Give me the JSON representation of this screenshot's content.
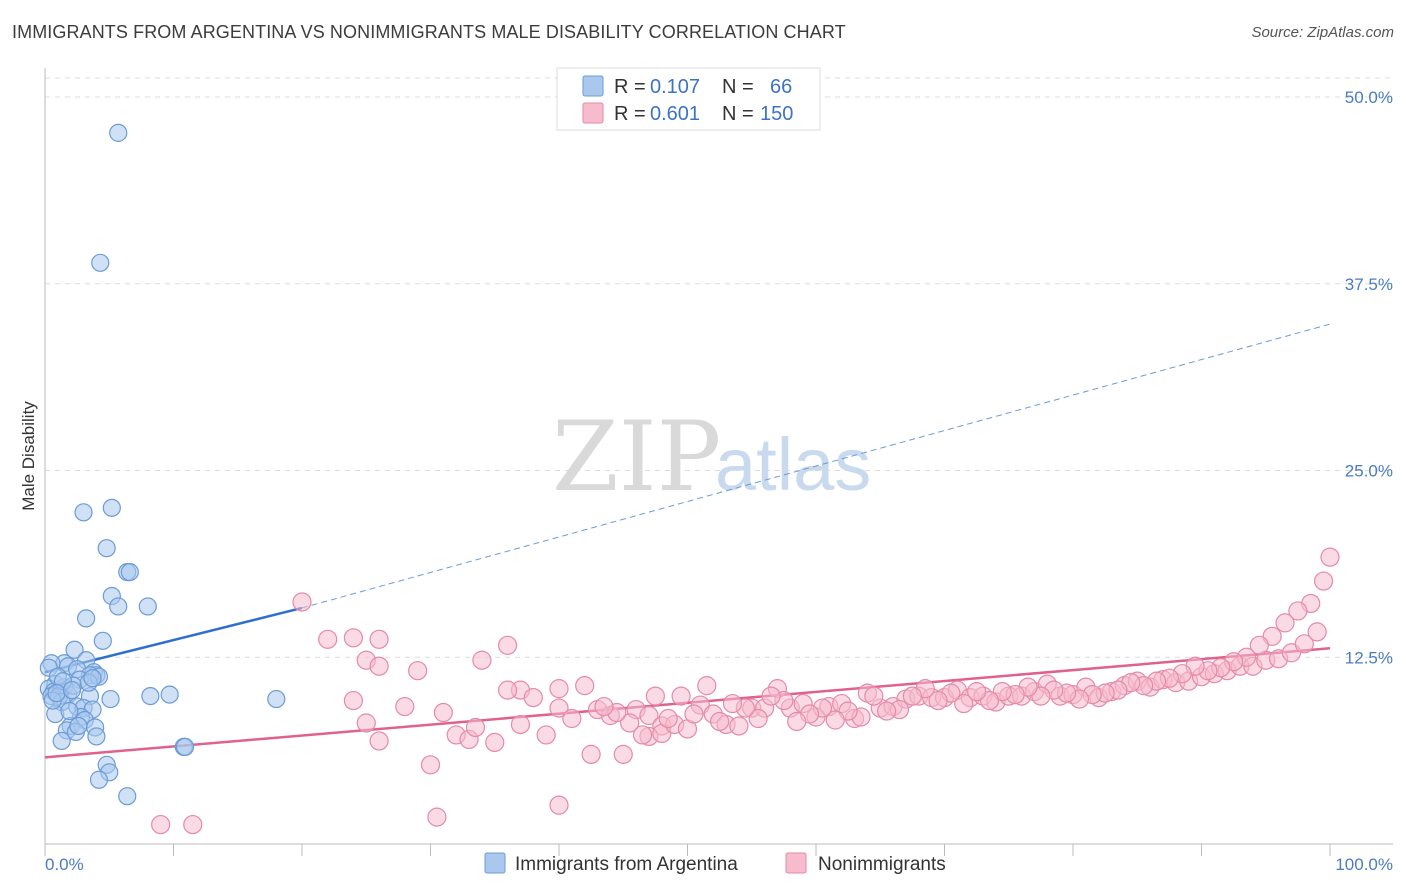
{
  "title": "IMMIGRANTS FROM ARGENTINA VS NONIMMIGRANTS MALE DISABILITY CORRELATION CHART",
  "source": "Source: ZipAtlas.com",
  "watermark": {
    "zip": "ZIP",
    "atlas": "atlas"
  },
  "legend": {
    "r_label": "R =",
    "n_label": "N =",
    "series": [
      {
        "r": "0.107",
        "n": "66"
      },
      {
        "r": "0.601",
        "n": "150"
      }
    ]
  },
  "bottom_legend": [
    "Immigrants from Argentina",
    "Nonimmigrants"
  ],
  "colors": {
    "blue_fill": "#aac8ee",
    "blue_stroke": "#6b9bd6",
    "blue_line": "#2f6fd0",
    "pink_fill": "#f6bccd",
    "pink_stroke": "#e58aa7",
    "pink_line": "#e0608e",
    "grid": "#dcdcdc",
    "tick_text": "#4a7cc0"
  },
  "chart_data": {
    "type": "scatter",
    "title": "IMMIGRANTS FROM ARGENTINA VS NONIMMIGRANTS MALE DISABILITY CORRELATION CHART",
    "xlabel": "",
    "ylabel": "Male Disability",
    "xlim": [
      0,
      100
    ],
    "ylim": [
      0,
      50
    ],
    "x_tick_labels": [
      "0.0%",
      "100.0%"
    ],
    "y_ticks": [
      12.5,
      25.0,
      37.5,
      50.0
    ],
    "y_tick_labels": [
      "12.5%",
      "25.0%",
      "37.5%",
      "50.0%"
    ],
    "grid": true,
    "legend_position": "top-center",
    "series": [
      {
        "name": "Immigrants from Argentina",
        "r": 0.107,
        "n": 66,
        "trend": {
          "x0": 0,
          "y0": 11.5,
          "x1": 20,
          "y1": 15.8,
          "dashed_to_x": 100,
          "dashed_to_y": 34.8
        },
        "points": [
          [
            5.7,
            47.6
          ],
          [
            4.3,
            38.9
          ],
          [
            3.0,
            22.2
          ],
          [
            5.2,
            22.5
          ],
          [
            4.8,
            19.8
          ],
          [
            6.4,
            18.2
          ],
          [
            6.6,
            18.2
          ],
          [
            5.2,
            16.6
          ],
          [
            8.0,
            15.9
          ],
          [
            5.7,
            15.9
          ],
          [
            3.2,
            15.1
          ],
          [
            4.5,
            13.6
          ],
          [
            2.3,
            13.0
          ],
          [
            3.2,
            12.3
          ],
          [
            1.5,
            12.1
          ],
          [
            0.5,
            12.1
          ],
          [
            1.8,
            11.9
          ],
          [
            2.5,
            11.7
          ],
          [
            3.8,
            11.5
          ],
          [
            4.0,
            11.3
          ],
          [
            3.5,
            11.3
          ],
          [
            4.2,
            11.2
          ],
          [
            2.7,
            11.0
          ],
          [
            0.8,
            10.7
          ],
          [
            1.5,
            10.5
          ],
          [
            0.3,
            10.4
          ],
          [
            0.7,
            10.2
          ],
          [
            1.2,
            10.2
          ],
          [
            1.8,
            10.0
          ],
          [
            0.5,
            9.9
          ],
          [
            1.1,
            9.9
          ],
          [
            3.5,
            9.9
          ],
          [
            8.2,
            9.9
          ],
          [
            9.7,
            10.0
          ],
          [
            5.1,
            9.7
          ],
          [
            18.0,
            9.7
          ],
          [
            1.3,
            9.5
          ],
          [
            2.5,
            9.2
          ],
          [
            3.0,
            9.1
          ],
          [
            3.7,
            9.0
          ],
          [
            0.8,
            8.7
          ],
          [
            2.8,
            8.5
          ],
          [
            3.1,
            8.3
          ],
          [
            2.0,
            7.9
          ],
          [
            3.9,
            7.8
          ],
          [
            1.7,
            7.6
          ],
          [
            2.4,
            7.5
          ],
          [
            4.0,
            7.2
          ],
          [
            1.3,
            6.9
          ],
          [
            10.8,
            6.5
          ],
          [
            10.9,
            6.5
          ],
          [
            4.8,
            5.3
          ],
          [
            5.0,
            4.8
          ],
          [
            4.2,
            4.3
          ],
          [
            6.4,
            3.2
          ],
          [
            0.3,
            11.8
          ],
          [
            1.0,
            11.2
          ],
          [
            2.2,
            10.6
          ],
          [
            3.4,
            10.8
          ],
          [
            0.6,
            9.6
          ],
          [
            1.9,
            8.9
          ],
          [
            2.6,
            7.9
          ],
          [
            1.4,
            10.9
          ],
          [
            0.9,
            10.1
          ],
          [
            3.7,
            11.1
          ],
          [
            2.1,
            10.3
          ]
        ]
      },
      {
        "name": "Nonimmigrants",
        "r": 0.601,
        "n": 150,
        "trend": {
          "x0": 0,
          "y0": 5.8,
          "x1": 100,
          "y1": 13.1
        },
        "points": [
          [
            20,
            16.2
          ],
          [
            22,
            13.7
          ],
          [
            24,
            13.8
          ],
          [
            26,
            13.7
          ],
          [
            25,
            12.3
          ],
          [
            26,
            11.9
          ],
          [
            29,
            11.6
          ],
          [
            36,
            13.3
          ],
          [
            34,
            12.3
          ],
          [
            37,
            10.3
          ],
          [
            36,
            10.3
          ],
          [
            38,
            9.8
          ],
          [
            40,
            10.4
          ],
          [
            42,
            10.6
          ],
          [
            24,
            9.6
          ],
          [
            28,
            9.2
          ],
          [
            31,
            8.8
          ],
          [
            25,
            8.1
          ],
          [
            26,
            6.9
          ],
          [
            32,
            7.3
          ],
          [
            33,
            7.0
          ],
          [
            35,
            6.8
          ],
          [
            37,
            8.0
          ],
          [
            39,
            7.3
          ],
          [
            40,
            9.1
          ],
          [
            41,
            8.4
          ],
          [
            43,
            9.0
          ],
          [
            44,
            8.6
          ],
          [
            45,
            6.0
          ],
          [
            46,
            9.0
          ],
          [
            47,
            8.6
          ],
          [
            48,
            7.9
          ],
          [
            47,
            7.2
          ],
          [
            48,
            7.4
          ],
          [
            49,
            8.0
          ],
          [
            50,
            7.7
          ],
          [
            51,
            9.3
          ],
          [
            52,
            8.7
          ],
          [
            53,
            8.0
          ],
          [
            54,
            7.9
          ],
          [
            55,
            9.1
          ],
          [
            56,
            9.1
          ],
          [
            57,
            10.4
          ],
          [
            58,
            9.1
          ],
          [
            59,
            9.4
          ],
          [
            60,
            8.5
          ],
          [
            61,
            9.2
          ],
          [
            62,
            9.4
          ],
          [
            63,
            8.4
          ],
          [
            64,
            10.1
          ],
          [
            65,
            9.1
          ],
          [
            66,
            9.2
          ],
          [
            67,
            9.7
          ],
          [
            68,
            9.9
          ],
          [
            69,
            9.8
          ],
          [
            70,
            9.8
          ],
          [
            71,
            10.3
          ],
          [
            72,
            9.8
          ],
          [
            73,
            9.9
          ],
          [
            74,
            9.5
          ],
          [
            75,
            9.9
          ],
          [
            76,
            9.9
          ],
          [
            77,
            10.2
          ],
          [
            78,
            10.7
          ],
          [
            79,
            9.9
          ],
          [
            80,
            10.0
          ],
          [
            81,
            10.5
          ],
          [
            82,
            9.8
          ],
          [
            83,
            10.2
          ],
          [
            84,
            10.6
          ],
          [
            85,
            10.9
          ],
          [
            86,
            10.5
          ],
          [
            87,
            11.0
          ],
          [
            88,
            10.8
          ],
          [
            89,
            10.9
          ],
          [
            90,
            11.2
          ],
          [
            91,
            11.4
          ],
          [
            92,
            11.6
          ],
          [
            93,
            11.9
          ],
          [
            94,
            11.9
          ],
          [
            95,
            12.3
          ],
          [
            96,
            12.4
          ],
          [
            97,
            12.8
          ],
          [
            98,
            13.4
          ],
          [
            99,
            14.2
          ],
          [
            100,
            19.2
          ],
          [
            99.5,
            17.6
          ],
          [
            98.5,
            16.1
          ],
          [
            97.5,
            15.6
          ],
          [
            96.5,
            14.8
          ],
          [
            95.5,
            13.9
          ],
          [
            94.5,
            13.3
          ],
          [
            93.5,
            12.5
          ],
          [
            92.5,
            12.2
          ],
          [
            91.5,
            11.8
          ],
          [
            90.5,
            11.6
          ],
          [
            89.5,
            11.9
          ],
          [
            88.5,
            11.4
          ],
          [
            87.5,
            11.1
          ],
          [
            86.5,
            10.9
          ],
          [
            85.5,
            10.6
          ],
          [
            84.5,
            10.8
          ],
          [
            83.5,
            10.3
          ],
          [
            82.5,
            10.1
          ],
          [
            81.5,
            10.0
          ],
          [
            80.5,
            9.7
          ],
          [
            79.5,
            10.1
          ],
          [
            78.5,
            10.3
          ],
          [
            77.5,
            9.9
          ],
          [
            76.5,
            10.5
          ],
          [
            75.5,
            10.0
          ],
          [
            74.5,
            10.2
          ],
          [
            73.5,
            9.6
          ],
          [
            72.5,
            10.2
          ],
          [
            71.5,
            9.4
          ],
          [
            70.5,
            10.1
          ],
          [
            69.5,
            9.6
          ],
          [
            68.5,
            10.4
          ],
          [
            67.5,
            9.9
          ],
          [
            66.5,
            9.0
          ],
          [
            65.5,
            8.9
          ],
          [
            64.5,
            9.9
          ],
          [
            63.5,
            8.5
          ],
          [
            62.5,
            8.9
          ],
          [
            61.5,
            8.3
          ],
          [
            60.5,
            9.1
          ],
          [
            59.5,
            8.7
          ],
          [
            58.5,
            8.2
          ],
          [
            57.5,
            9.6
          ],
          [
            56.5,
            9.9
          ],
          [
            55.5,
            8.4
          ],
          [
            54.5,
            9.1
          ],
          [
            53.5,
            9.4
          ],
          [
            52.5,
            8.2
          ],
          [
            51.5,
            10.6
          ],
          [
            50.5,
            8.7
          ],
          [
            49.5,
            9.9
          ],
          [
            48.5,
            8.4
          ],
          [
            47.5,
            9.9
          ],
          [
            46.5,
            7.3
          ],
          [
            45.5,
            8.1
          ],
          [
            44.5,
            8.8
          ],
          [
            43.5,
            9.2
          ],
          [
            42.5,
            6.0
          ],
          [
            11.5,
            1.3
          ],
          [
            9.0,
            1.3
          ],
          [
            30.5,
            1.8
          ],
          [
            40.0,
            2.6
          ],
          [
            30.0,
            5.3
          ],
          [
            33.5,
            7.8
          ]
        ]
      }
    ]
  }
}
